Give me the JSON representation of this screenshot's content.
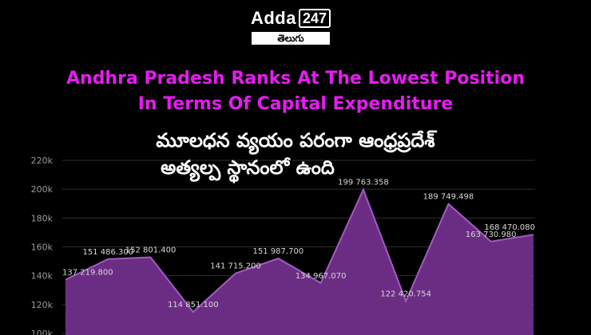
{
  "logo": {
    "brand": "Adda",
    "number": "247",
    "language": "తెలుగు"
  },
  "title_en": [
    "Andhra Pradesh Ranks At The Lowest Position",
    "In Terms Of Capital Expenditure"
  ],
  "title_te": [
    "మూలధన వ్యయం పరంగా ఆంధ్రప్రదేశ్",
    "అత్యల్ప స్థానంలో ఉంది"
  ],
  "colors": {
    "title_en": "#e61cf0",
    "area_fill": "#6b2d83",
    "area_line": "#a45ac4",
    "gridline": "#2e2e2e"
  },
  "chart_data": {
    "type": "area",
    "title": "",
    "xlabel": "",
    "ylabel": "",
    "ylim": [
      100000,
      220000
    ],
    "y_tick_labels": [
      "100k",
      "120k",
      "140k",
      "160k",
      "180k",
      "200k",
      "220k"
    ],
    "grid": true,
    "values": [
      137219.8,
      151486.3,
      152801.4,
      114851.1,
      141715.2,
      151987.7,
      134967.07,
      199763.358,
      122420.754,
      189749.498,
      163730.98,
      168470.08
    ],
    "data_labels": [
      "137 219.800",
      "151 486.300",
      "152 801.400",
      "114 851.100",
      "141 715.200",
      "151 987.700",
      "134 967.070",
      "199 763.358",
      "122 420.754",
      "189 749.498",
      "163 730.980",
      "168 470.080"
    ]
  }
}
